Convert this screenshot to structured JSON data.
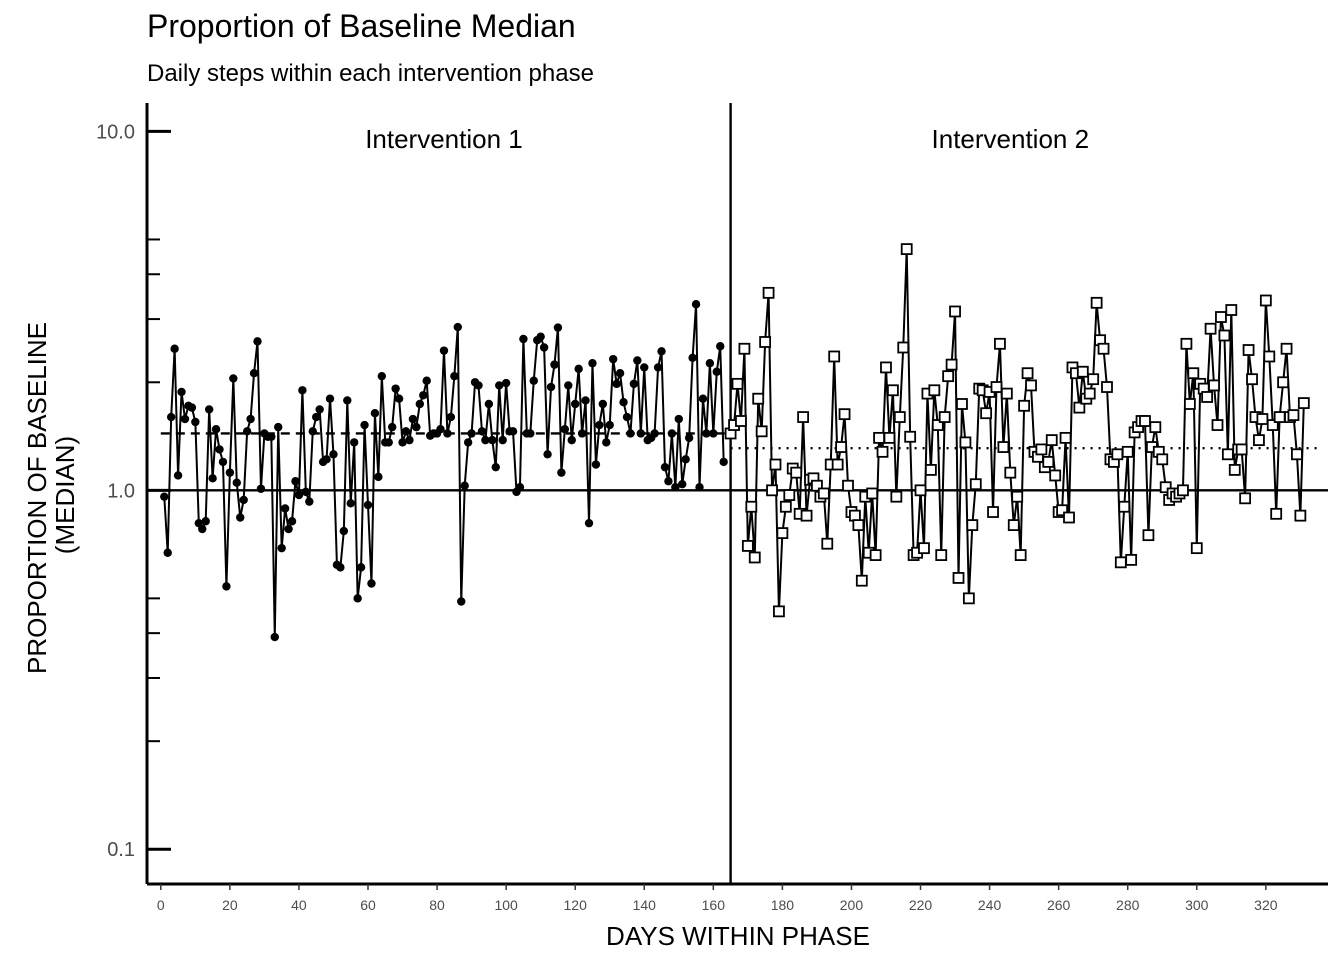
{
  "chart_data": {
    "type": "line",
    "title": "Proportion of Baseline Median",
    "subtitle": "Daily steps within each intervention phase",
    "xlabel": "DAYS WITHIN PHASE",
    "ylabel_line1": "PROPORTION OF BASELINE",
    "ylabel_line2": "(MEDIAN)",
    "y_scale": "log10",
    "ylim": [
      0.08,
      12
    ],
    "xlim": [
      -4,
      338
    ],
    "x_ticks": [
      0,
      20,
      40,
      60,
      80,
      100,
      120,
      140,
      160,
      180,
      200,
      220,
      240,
      260,
      280,
      300,
      320
    ],
    "y_ticks": [
      0.1,
      1.0,
      10.0
    ],
    "y_tick_labels": [
      "0.1",
      "1.0",
      "10.0"
    ],
    "y_minor_ticks": [
      0.2,
      0.3,
      0.4,
      0.5,
      2,
      3,
      4,
      5
    ],
    "reference_line": 1.0,
    "phase_divider_x": 165,
    "phase_labels": [
      {
        "text": "Intervention 1",
        "x": 82
      },
      {
        "text": "Intervention 2",
        "x": 246
      }
    ],
    "grid": false,
    "series": [
      {
        "marker": "filled-circle",
        "median_line": {
          "y": 1.44,
          "style": "dashed",
          "x_range": [
            0,
            165
          ]
        },
        "x_start": 1,
        "values": [
          0.96,
          0.67,
          1.6,
          2.48,
          1.1,
          1.88,
          1.58,
          1.72,
          1.7,
          1.55,
          0.81,
          0.78,
          0.82,
          1.68,
          1.08,
          1.48,
          1.3,
          1.2,
          0.54,
          1.12,
          2.05,
          1.05,
          0.84,
          0.94,
          1.46,
          1.58,
          2.12,
          2.6,
          1.01,
          1.44,
          1.41,
          1.41,
          0.39,
          1.5,
          0.69,
          0.89,
          0.78,
          0.82,
          1.06,
          0.97,
          1.9,
          0.99,
          0.93,
          1.46,
          1.6,
          1.68,
          1.2,
          1.22,
          1.8,
          1.26,
          0.62,
          0.61,
          0.77,
          1.78,
          0.92,
          1.36,
          0.5,
          0.61,
          1.52,
          0.91,
          0.55,
          1.64,
          1.09,
          2.08,
          1.36,
          1.36,
          1.5,
          1.92,
          1.8,
          1.36,
          1.46,
          1.38,
          1.58,
          1.5,
          1.74,
          1.84,
          2.02,
          1.42,
          1.44,
          1.44,
          1.48,
          2.45,
          1.44,
          1.6,
          2.08,
          2.85,
          0.49,
          1.03,
          1.36,
          1.44,
          2.0,
          1.96,
          1.46,
          1.38,
          1.74,
          1.38,
          1.16,
          1.96,
          1.38,
          1.99,
          1.46,
          1.46,
          0.99,
          1.02,
          2.64,
          1.44,
          1.44,
          2.02,
          2.62,
          2.68,
          2.5,
          1.26,
          1.94,
          2.24,
          2.84,
          1.12,
          1.48,
          1.96,
          1.38,
          1.74,
          2.18,
          1.44,
          1.78,
          0.81,
          2.26,
          1.18,
          1.52,
          1.74,
          1.36,
          1.52,
          2.32,
          1.98,
          2.12,
          1.76,
          1.6,
          1.44,
          1.98,
          2.3,
          1.44,
          2.2,
          1.38,
          1.4,
          1.44,
          2.2,
          2.44,
          1.16,
          1.06,
          1.44,
          1.02,
          1.58,
          1.04,
          1.22,
          1.4,
          2.34,
          3.3,
          1.02,
          1.8,
          1.44,
          2.26,
          1.44,
          2.14,
          2.52,
          1.2
        ]
      },
      {
        "marker": "open-square",
        "median_line": {
          "y": 1.31,
          "style": "dotted",
          "x_range": [
            165,
            336
          ]
        },
        "x_start": 165,
        "values": [
          1.44,
          1.52,
          1.98,
          1.56,
          2.48,
          0.7,
          0.9,
          0.65,
          1.8,
          1.46,
          2.59,
          3.55,
          1.0,
          1.18,
          0.46,
          0.76,
          0.9,
          0.97,
          1.15,
          1.12,
          0.86,
          1.6,
          0.85,
          1.07,
          1.08,
          1.03,
          0.96,
          0.98,
          0.71,
          1.18,
          2.36,
          1.18,
          1.32,
          1.63,
          1.03,
          0.87,
          0.85,
          0.8,
          0.56,
          0.96,
          0.67,
          0.98,
          0.66,
          1.4,
          1.28,
          2.2,
          1.4,
          1.9,
          0.96,
          1.6,
          2.5,
          4.7,
          1.41,
          0.66,
          0.67,
          1.0,
          0.69,
          1.86,
          1.14,
          1.9,
          1.52,
          0.66,
          1.6,
          2.08,
          2.24,
          3.15,
          0.57,
          1.74,
          1.36,
          0.5,
          0.8,
          1.04,
          1.92,
          1.9,
          1.64,
          1.88,
          0.87,
          1.94,
          2.56,
          1.32,
          1.86,
          1.12,
          0.8,
          0.96,
          0.66,
          1.72,
          2.12,
          1.96,
          1.28,
          1.24,
          1.3,
          1.16,
          1.2,
          1.38,
          1.1,
          0.87,
          0.88,
          1.4,
          0.84,
          2.2,
          2.12,
          1.7,
          2.14,
          1.8,
          1.86,
          2.04,
          3.33,
          2.62,
          2.48,
          1.94,
          1.22,
          1.2,
          1.26,
          0.63,
          0.9,
          1.28,
          0.64,
          1.45,
          1.5,
          1.56,
          1.56,
          0.75,
          1.32,
          1.5,
          1.28,
          1.22,
          1.02,
          0.94,
          0.98,
          0.96,
          0.98,
          1.0,
          2.56,
          1.74,
          2.12,
          0.69,
          1.98,
          1.92,
          1.82,
          2.82,
          1.96,
          1.52,
          3.04,
          2.7,
          1.26,
          3.18,
          1.14,
          1.3,
          1.3,
          0.95,
          2.46,
          2.04,
          1.6,
          1.38,
          1.58,
          3.38,
          2.36,
          1.52,
          0.86,
          1.6,
          2.0,
          2.48,
          1.6,
          1.62,
          1.26,
          0.85,
          1.75
        ]
      }
    ]
  }
}
